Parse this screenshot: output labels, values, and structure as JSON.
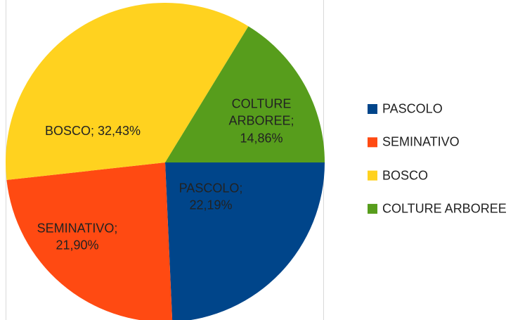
{
  "chart_data": {
    "type": "pie",
    "categories": [
      "PASCOLO",
      "SEMINATIVO",
      "BOSCO",
      "COLTURE ARBOREE"
    ],
    "values": [
      22.19,
      21.9,
      32.43,
      14.86
    ],
    "value_labels": [
      "PASCOLO; 22,19%",
      "SEMINATIVO; 21,90%",
      "BOSCO; 32,43%",
      "COLTURE ARBOREE; 14,86%"
    ],
    "colors": [
      "#00458a",
      "#ff4a12",
      "#ffd21f",
      "#579d1c"
    ],
    "legend": "right"
  }
}
